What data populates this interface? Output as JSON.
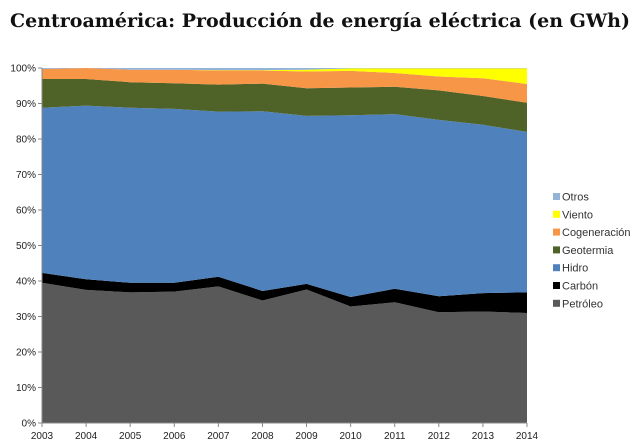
{
  "chart_data": {
    "type": "area",
    "stacked": "percent",
    "title": "Centroamérica: Producción de energía eléctrica (en GWh)",
    "xlabel": "",
    "ylabel": "",
    "x": [
      "2003",
      "2004",
      "2005",
      "2006",
      "2007",
      "2008",
      "2009",
      "2010",
      "2011",
      "2012",
      "2013",
      "2014"
    ],
    "y_ticks": [
      "0%",
      "10%",
      "20%",
      "30%",
      "40%",
      "50%",
      "60%",
      "70%",
      "80%",
      "90%",
      "100%"
    ],
    "ylim": [
      0,
      100
    ],
    "grid": false,
    "legend_position": "right",
    "series": [
      {
        "name": "Petróleo",
        "color": "#595959",
        "values": [
          39.5,
          37.5,
          36.8,
          37.0,
          38.5,
          34.5,
          37.6,
          32.8,
          34.0,
          31.2,
          31.4,
          31.0
        ]
      },
      {
        "name": "Carbón",
        "color": "#000000",
        "values": [
          2.8,
          3.0,
          2.7,
          2.5,
          2.7,
          2.7,
          1.6,
          2.7,
          3.8,
          4.5,
          5.2,
          5.8
        ]
      },
      {
        "name": "Hidro",
        "color": "#4F81BD",
        "values": [
          46.5,
          48.9,
          49.3,
          49.0,
          46.5,
          50.6,
          47.3,
          51.2,
          49.2,
          49.7,
          47.4,
          45.2
        ]
      },
      {
        "name": "Geotermia",
        "color": "#4F6228",
        "values": [
          8.1,
          7.5,
          7.2,
          7.2,
          7.6,
          7.8,
          7.8,
          7.8,
          7.7,
          8.3,
          8.1,
          8.2
        ]
      },
      {
        "name": "Cogeneración",
        "color": "#F79646",
        "values": [
          2.8,
          3.1,
          3.5,
          3.8,
          4.0,
          3.7,
          4.7,
          4.7,
          3.9,
          3.9,
          5.0,
          5.3
        ]
      },
      {
        "name": "Viento",
        "color": "#FFFF00",
        "values": [
          0.0,
          0.0,
          0.0,
          0.0,
          0.1,
          0.1,
          0.5,
          0.7,
          1.3,
          2.3,
          2.8,
          4.4
        ]
      },
      {
        "name": "Otros",
        "color": "#93B3D7",
        "values": [
          0.3,
          0.0,
          0.5,
          0.5,
          0.6,
          0.6,
          0.5,
          0.1,
          0.1,
          0.1,
          0.1,
          0.1
        ]
      }
    ]
  }
}
